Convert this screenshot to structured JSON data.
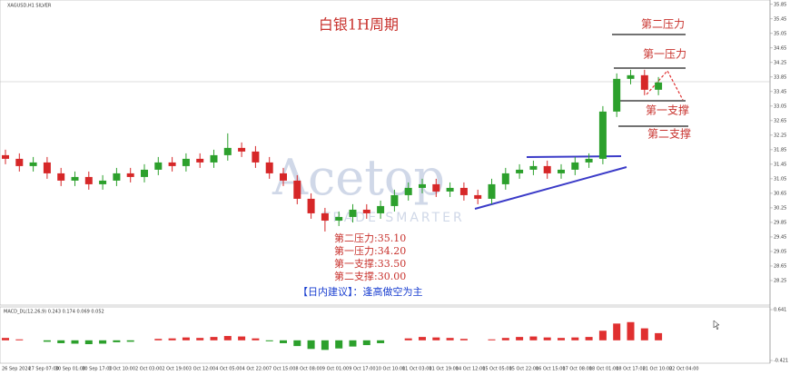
{
  "chart_data": [
    {
      "type": "candlestick",
      "header": "XAGUSD,H1  SILVER",
      "title": "白银1H周期",
      "watermark": "Acetop",
      "watermark_sub": "TRADE SMARTER",
      "open": [
        31.7,
        31.6,
        31.4,
        31.5,
        31.2,
        31.0,
        31.1,
        30.9,
        31.0,
        31.2,
        31.1,
        31.3,
        31.5,
        31.4,
        31.6,
        31.5,
        31.7,
        31.9,
        31.8,
        31.5,
        31.2,
        31.0,
        30.5,
        30.1,
        29.9,
        30.0,
        30.2,
        30.1,
        30.3,
        30.6,
        30.8,
        30.9,
        30.7,
        30.8,
        30.6,
        30.5,
        30.9,
        31.2,
        31.3,
        31.4,
        31.2,
        31.3,
        31.5,
        31.6,
        32.9,
        33.8,
        33.9,
        33.5
      ],
      "high": [
        31.85,
        31.75,
        31.65,
        31.65,
        31.35,
        31.25,
        31.25,
        31.15,
        31.35,
        31.35,
        31.45,
        31.65,
        31.65,
        31.75,
        31.75,
        31.85,
        32.3,
        32.05,
        31.95,
        31.65,
        31.35,
        31.15,
        30.65,
        30.25,
        30.15,
        30.35,
        30.35,
        30.45,
        30.75,
        30.95,
        31.05,
        31.05,
        30.95,
        30.95,
        30.75,
        31.05,
        31.35,
        31.45,
        31.55,
        31.55,
        31.45,
        31.65,
        31.75,
        33.05,
        33.95,
        34.05,
        34.05,
        33.85
      ],
      "low": [
        31.45,
        31.25,
        31.25,
        31.05,
        30.85,
        30.85,
        30.75,
        30.75,
        30.85,
        30.95,
        30.95,
        31.15,
        31.25,
        31.25,
        31.35,
        31.35,
        31.55,
        31.65,
        31.35,
        31.05,
        30.85,
        30.35,
        29.95,
        29.6,
        29.75,
        29.85,
        29.95,
        29.95,
        30.15,
        30.45,
        30.65,
        30.55,
        30.55,
        30.45,
        30.35,
        30.35,
        30.75,
        31.05,
        31.15,
        31.05,
        31.05,
        31.15,
        31.35,
        31.45,
        32.75,
        33.65,
        33.35,
        33.35
      ],
      "close": [
        31.6,
        31.4,
        31.5,
        31.2,
        31.0,
        31.1,
        30.9,
        31.0,
        31.2,
        31.1,
        31.3,
        31.5,
        31.4,
        31.6,
        31.5,
        31.7,
        31.9,
        31.8,
        31.5,
        31.2,
        31.0,
        30.5,
        30.1,
        29.9,
        30.0,
        30.2,
        30.1,
        30.3,
        30.6,
        30.8,
        30.9,
        30.7,
        30.8,
        30.6,
        30.5,
        30.9,
        31.2,
        31.3,
        31.4,
        31.2,
        31.3,
        31.5,
        31.6,
        32.9,
        33.8,
        33.9,
        33.5,
        33.7
      ],
      "up_color": "#2ca02c",
      "down_color": "#d62728",
      "ylim": [
        27.6,
        35.97
      ],
      "yticks": [
        35.85,
        35.45,
        35.05,
        34.65,
        34.25,
        33.85,
        33.45,
        33.05,
        32.65,
        32.25,
        31.85,
        31.45,
        31.05,
        30.65,
        30.25,
        29.85,
        29.45,
        29.05,
        28.65,
        28.25
      ],
      "x_tick_labels": [
        "26 Sep 2024",
        "27 Sep 07:00",
        "30 Sep 01:00",
        "30 Sep 17:00",
        "1 Oct 10:00",
        "2 Oct 03:00",
        "2 Oct 19:00",
        "3 Oct 12:00",
        "4 Oct 05:00",
        "4 Oct 22:00",
        "7 Oct 15:00",
        "8 Oct 08:00",
        "9 Oct 01:00",
        "9 Oct 17:00",
        "10 Oct 10:00",
        "11 Oct 03:00",
        "11 Oct 19:00",
        "14 Oct 12:00",
        "15 Oct 05:00",
        "15 Oct 22:00",
        "16 Oct 15:00",
        "17 Oct 08:00",
        "18 Oct 01:00",
        "18 Oct 17:00",
        "21 Oct 10:00",
        "22 Oct 04:00"
      ],
      "level_labels": [
        "第二压力",
        "第一压力",
        "第一支撑",
        "第二支撑"
      ],
      "notes": [
        "第二压力:35.10",
        "第一压力:34.20",
        "第一支撑:33.50",
        "第二支撑:30.00"
      ],
      "advice": "【日内建议】：逢高做空为主"
    },
    {
      "type": "macd",
      "label": "MACD_DL(12,26,9) 0.243 0.174 0.069 0.052",
      "values": [
        0.05,
        0.02,
        0.0,
        -0.03,
        -0.06,
        -0.07,
        -0.08,
        -0.07,
        -0.04,
        -0.03,
        0.0,
        0.03,
        0.04,
        0.06,
        0.05,
        0.07,
        0.09,
        0.08,
        0.04,
        -0.02,
        -0.06,
        -0.12,
        -0.18,
        -0.2,
        -0.17,
        -0.13,
        -0.1,
        -0.06,
        0.0,
        0.04,
        0.07,
        0.06,
        0.05,
        0.03,
        0.0,
        0.02,
        0.05,
        0.07,
        0.08,
        0.06,
        0.05,
        0.06,
        0.07,
        0.2,
        0.35,
        0.38,
        0.25,
        0.15
      ],
      "pos_color": "#e03030",
      "neg_color": "#2ca02c",
      "ylim": [
        -0.421,
        0.641
      ],
      "yticks": [
        0.641,
        -0.421
      ]
    }
  ]
}
